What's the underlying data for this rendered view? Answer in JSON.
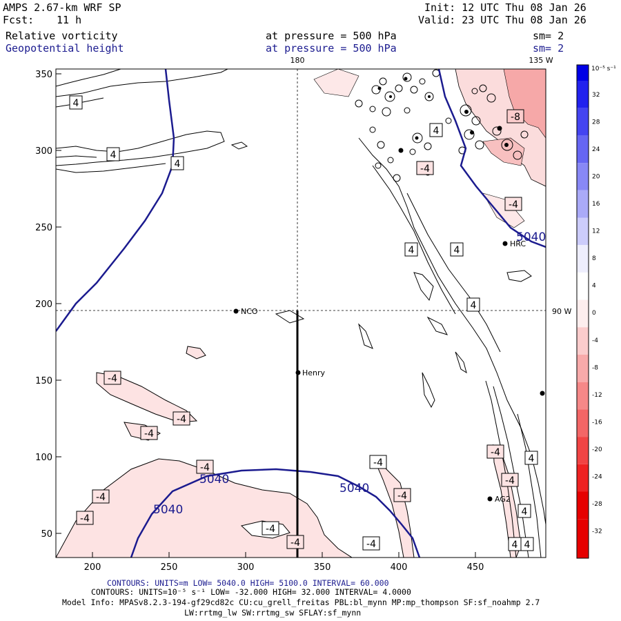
{
  "header": {
    "model": "AMPS 2.67-km WRF SP",
    "fcst_label": "Fcst:",
    "fcst_value": "11 h",
    "init": "Init: 12 UTC Thu 08 Jan 26",
    "valid": "Valid: 23 UTC Thu 08 Jan 26",
    "field1": "Relative vorticity",
    "field1_level": "at pressure =  500 hPa",
    "field1_sm": "sm= 2",
    "field2": "Geopotential height",
    "field2_level": "at pressure =  500 hPa",
    "field2_sm": "sm= 2"
  },
  "map": {
    "x_ticks": [
      "200",
      "250",
      "300",
      "350",
      "400",
      "450"
    ],
    "y_ticks": [
      "350",
      "300",
      "250",
      "200",
      "150",
      "100",
      "50"
    ],
    "meridian_180": "180",
    "meridian_135W": "135 W",
    "parallel_90W": "90 W",
    "stations": [
      "NCO",
      "Henry",
      "HRC",
      "AG2"
    ],
    "height_labels": [
      "5040",
      "5040",
      "5040",
      "5040"
    ],
    "vort_labels": [
      "4",
      "4",
      "4",
      "4",
      "4",
      "4",
      "4",
      "4",
      "4",
      "4",
      "4",
      "-4",
      "-4",
      "-4",
      "-4",
      "-4",
      "-4",
      "-4",
      "-4",
      "-4",
      "-4",
      "-4",
      "-4",
      "-4",
      "-4",
      "-4",
      "-8"
    ]
  },
  "colorbar": {
    "unit": "10⁻⁵ s⁻¹",
    "labels": [
      "32",
      "28",
      "24",
      "20",
      "16",
      "12",
      "8",
      "4",
      "0",
      "-4",
      "-8",
      "-12",
      "-16",
      "-20",
      "-24",
      "-28",
      "-32"
    ],
    "colors": [
      "#0000e6",
      "#2222ee",
      "#4444f1",
      "#6666f3",
      "#8888f6",
      "#aaaaf8",
      "#ccccfb",
      "#eeeefd",
      "#ffffff",
      "#fdeeee",
      "#fbcccc",
      "#f8aaaa",
      "#f68888",
      "#f36666",
      "#f14444",
      "#ee2222",
      "#e60000"
    ]
  },
  "footer": {
    "line1": "CONTOURS:  UNITS=m  LOW=  5040.0         HIGH=  5100.0        INTERVAL=   60.000",
    "line2": "CONTOURS:  UNITS=10⁻⁵ s⁻¹   LOW=  -32.000        HIGH=  32.000        INTERVAL=   4.0000",
    "line3": "Model Info: MPASv8.2.3-194-gf29cd82c CU:cu_grell_freitas PBL:bl_mynn MP:mp_thompson SF:sf_noahmp 2.7",
    "line4": "LW:rrtmg_lw SW:rrtmg_sw SFLAY:sf_mynn"
  }
}
